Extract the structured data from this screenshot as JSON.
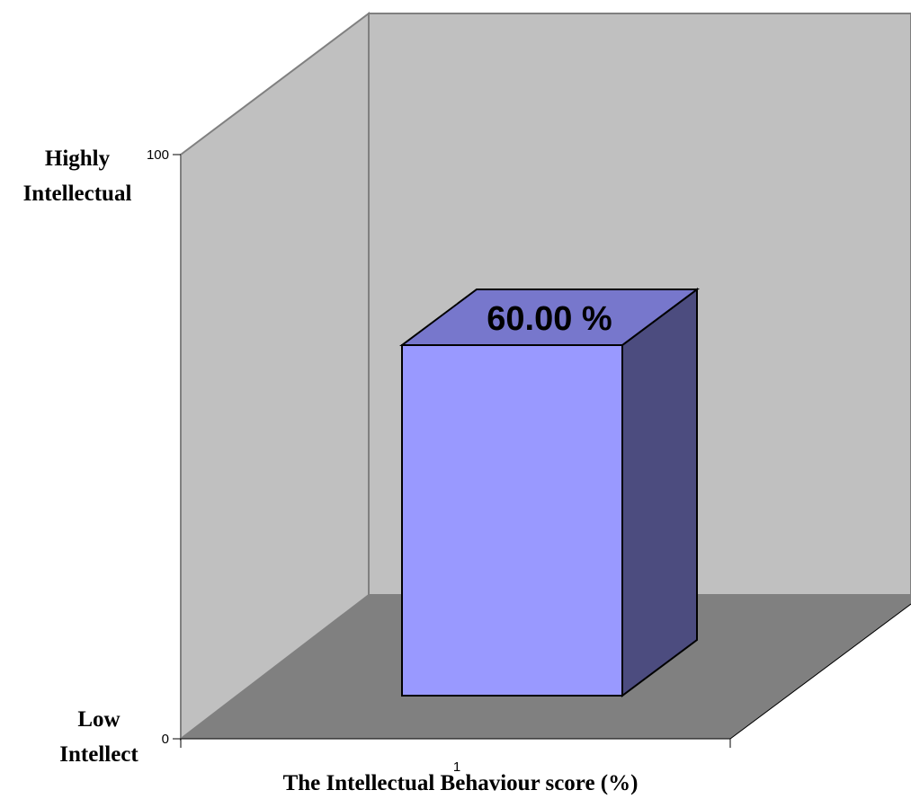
{
  "chart_data": {
    "type": "bar",
    "categories": [
      "1"
    ],
    "values": [
      60
    ],
    "data_labels": [
      "60.00 %"
    ],
    "title": "",
    "xlabel": "The Intellectual Behaviour score (%)",
    "ylabel": "",
    "ylim": [
      0,
      100
    ],
    "y_ticks": [
      "0",
      "100"
    ],
    "y_annotations": {
      "top": [
        "Highly",
        "Intellectual"
      ],
      "bottom": [
        "Low",
        "Intellect"
      ]
    },
    "grid": false,
    "legend": "none",
    "three_d": true,
    "colors": {
      "bar_front": "#9999ff",
      "bar_top": "#7777cc",
      "bar_side": "#4c4c7f",
      "back_wall": "#c0c0c0",
      "side_wall": "#c0c0c0",
      "floor": "#808080"
    }
  }
}
